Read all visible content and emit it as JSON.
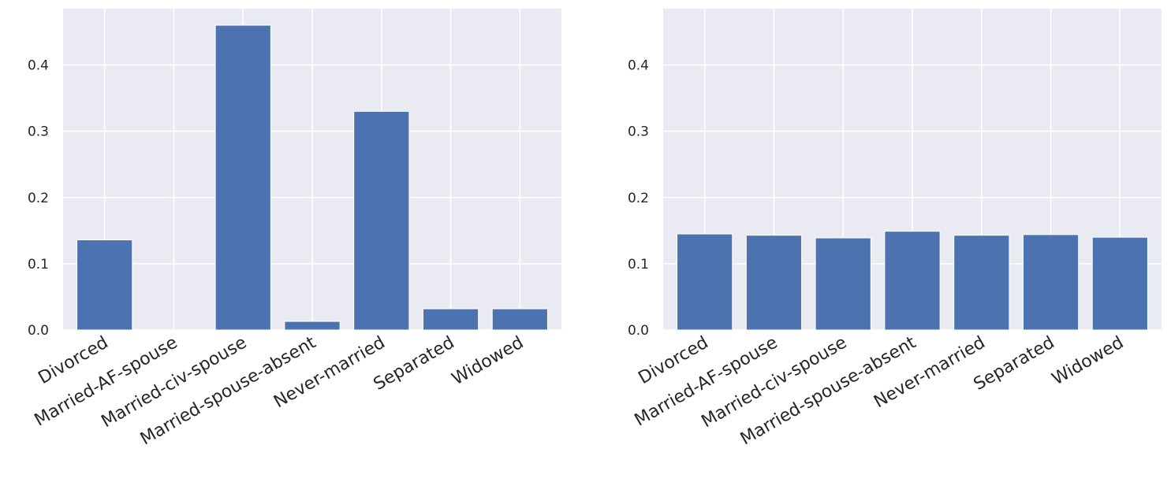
{
  "chart_data": [
    {
      "type": "bar",
      "title": "",
      "xlabel": "",
      "ylabel": "",
      "ylim": [
        0,
        0.485
      ],
      "yticks": [
        0.0,
        0.1,
        0.2,
        0.3,
        0.4
      ],
      "ytick_labels": [
        "0.0",
        "0.1",
        "0.2",
        "0.3",
        "0.4"
      ],
      "grid": true,
      "color": "#4c72b0",
      "categories": [
        "Divorced",
        "Married-AF-spouse",
        "Married-civ-spouse",
        "Married-spouse-absent",
        "Never-married",
        "Separated",
        "Widowed"
      ],
      "values": [
        0.136,
        0.0,
        0.46,
        0.013,
        0.33,
        0.032,
        0.032
      ]
    },
    {
      "type": "bar",
      "title": "",
      "xlabel": "",
      "ylabel": "",
      "ylim": [
        0,
        0.485
      ],
      "yticks": [
        0.0,
        0.1,
        0.2,
        0.3,
        0.4
      ],
      "ytick_labels": [
        "0.0",
        "0.1",
        "0.2",
        "0.3",
        "0.4"
      ],
      "grid": true,
      "color": "#4c72b0",
      "categories": [
        "Divorced",
        "Married-AF-spouse",
        "Married-civ-spouse",
        "Married-spouse-absent",
        "Never-married",
        "Separated",
        "Widowed"
      ],
      "values": [
        0.145,
        0.143,
        0.139,
        0.149,
        0.143,
        0.144,
        0.14
      ]
    }
  ]
}
